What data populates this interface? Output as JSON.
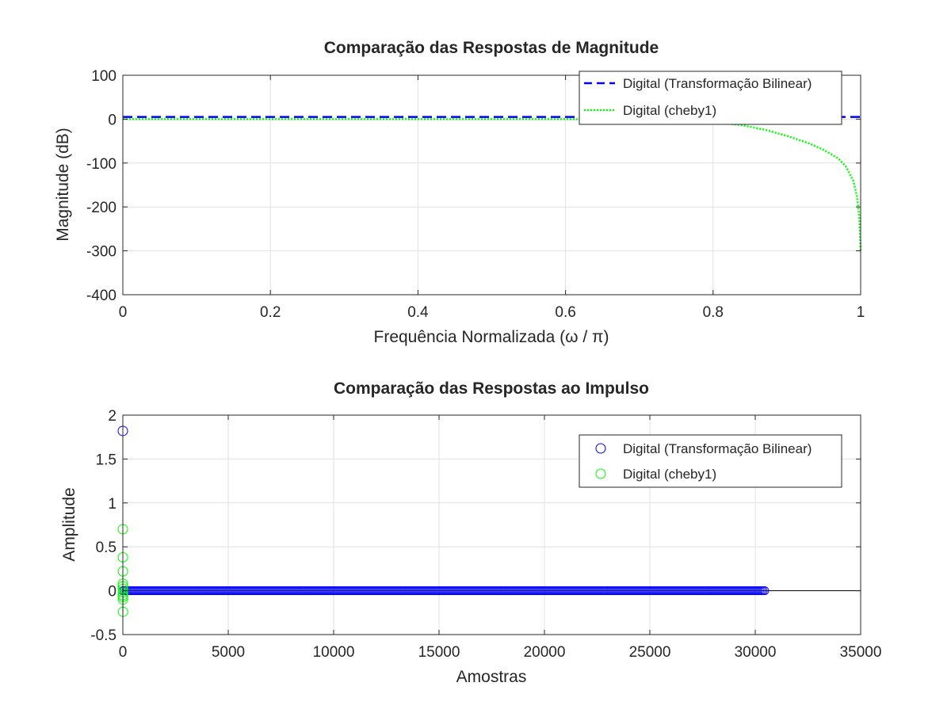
{
  "colors": {
    "bilinear": "#0000ff",
    "cheby1": "#00ff00",
    "axis": "#262626",
    "grid": "#e0e0e0",
    "background": "#ffffff"
  },
  "chart_data": [
    {
      "type": "line",
      "title": "Comparação das Respostas de Magnitude",
      "xlabel": "Frequência Normalizada (ω / π)",
      "ylabel": "Magnitude (dB)",
      "xlim": [
        0,
        1
      ],
      "ylim": [
        -400,
        100
      ],
      "xticks": [
        0,
        0.2,
        0.4,
        0.6,
        0.8,
        1
      ],
      "xtick_labels": [
        "0",
        "0.2",
        "0.4",
        "0.6",
        "0.8",
        "1"
      ],
      "yticks": [
        -400,
        -300,
        -200,
        -100,
        0,
        100
      ],
      "ytick_labels": [
        "-400",
        "-300",
        "-200",
        "-100",
        "0",
        "100"
      ],
      "grid": true,
      "legend_position": "top-right",
      "series": [
        {
          "name": "Digital (Transformação Bilinear)",
          "style": "dashed",
          "color": "#0000ff",
          "x": [
            0,
            0.1,
            0.2,
            0.3,
            0.4,
            0.5,
            0.6,
            0.7,
            0.8,
            0.9,
            1.0
          ],
          "y": [
            5,
            5,
            5,
            5,
            5,
            5,
            5,
            5,
            5,
            5,
            5
          ]
        },
        {
          "name": "Digital (cheby1)",
          "style": "dotted",
          "color": "#00ff00",
          "x": [
            0,
            0.2,
            0.4,
            0.6,
            0.7,
            0.75,
            0.8,
            0.84,
            0.87,
            0.9,
            0.93,
            0.95,
            0.97,
            0.98,
            0.99,
            0.995,
            0.998,
            1.0
          ],
          "y": [
            0,
            0,
            0,
            0,
            -1,
            -2,
            -6,
            -14,
            -24,
            -38,
            -55,
            -70,
            -90,
            -108,
            -140,
            -175,
            -220,
            -300
          ]
        }
      ]
    },
    {
      "type": "scatter",
      "title": "Comparação das Respostas ao Impulso",
      "xlabel": "Amostras",
      "ylabel": "Amplitude",
      "xlim": [
        0,
        35000
      ],
      "ylim": [
        -0.5,
        2
      ],
      "xticks": [
        0,
        5000,
        10000,
        15000,
        20000,
        25000,
        30000,
        35000
      ],
      "xtick_labels": [
        "0",
        "5000",
        "10000",
        "15000",
        "20000",
        "25000",
        "30000",
        "35000"
      ],
      "yticks": [
        -0.5,
        0,
        0.5,
        1,
        1.5,
        2
      ],
      "ytick_labels": [
        "-0.5",
        "0",
        "0.5",
        "1",
        "1.5",
        "2"
      ],
      "grid": true,
      "legend_position": "top-right",
      "series": [
        {
          "name": "Digital (Transformação Bilinear)",
          "marker": "circle",
          "color": "#0000ff",
          "description_range": [
            0,
            30500
          ],
          "peak": {
            "x": 0,
            "y": 1.82
          },
          "tail_value": 0
        },
        {
          "name": "Digital (cheby1)",
          "marker": "circle",
          "color": "#00ff00",
          "x": [
            0,
            1,
            2,
            3,
            4,
            5,
            6,
            7,
            8,
            9,
            10
          ],
          "y": [
            0.7,
            0.38,
            0.22,
            0.08,
            0.05,
            0.02,
            -0.05,
            -0.1,
            -0.07,
            -0.24,
            -0.02
          ]
        }
      ]
    }
  ]
}
